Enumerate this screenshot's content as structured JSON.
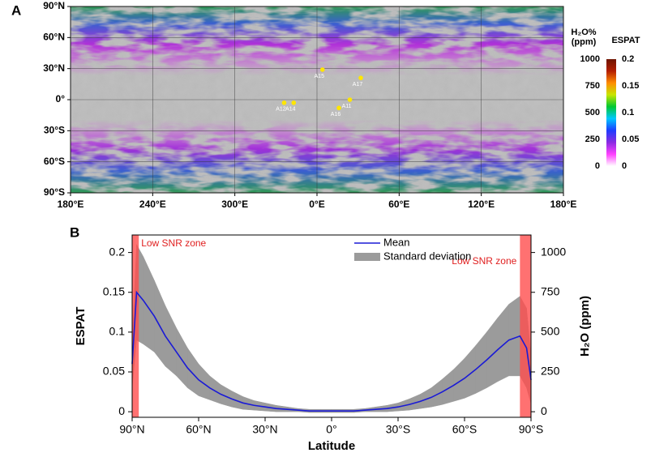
{
  "chart_data": [
    {
      "type": "map",
      "panel_label": "A",
      "xlim": [
        180,
        540
      ],
      "ylim": [
        -90,
        90
      ],
      "xticks": [
        {
          "value": 180,
          "label": "180°E"
        },
        {
          "value": 240,
          "label": "240°E"
        },
        {
          "value": 300,
          "label": "300°E"
        },
        {
          "value": 360,
          "label": "0°E"
        },
        {
          "value": 420,
          "label": "60°E"
        },
        {
          "value": 480,
          "label": "120°E"
        },
        {
          "value": 540,
          "label": "180°E"
        }
      ],
      "yticks": [
        {
          "value": 90,
          "label": "90°N"
        },
        {
          "value": 60,
          "label": "60°N"
        },
        {
          "value": 30,
          "label": "30°N"
        },
        {
          "value": 0,
          "label": "0°"
        },
        {
          "value": -30,
          "label": "30°S"
        },
        {
          "value": -60,
          "label": "60°S"
        },
        {
          "value": -90,
          "label": "90°S"
        }
      ],
      "grid": true,
      "sites": {
        "color": "#ffe600",
        "labels": [
          "A15",
          "A17",
          "A11",
          "A16",
          "A12",
          "A14"
        ],
        "x": [
          364,
          392,
          384,
          376,
          336,
          343
        ],
        "y": [
          29,
          21,
          0,
          -8,
          -3,
          -3
        ]
      },
      "colorbar": {
        "title_left": [
          "H₂O%",
          "(ppm)"
        ],
        "title_right": "ESPAT",
        "lim": [
          0,
          1000
        ],
        "ticks": [
          0,
          250,
          500,
          750,
          1000
        ],
        "lim2": [
          0,
          0.2
        ],
        "ticks2": [
          0,
          0.05,
          0.1,
          0.15,
          0.2
        ],
        "colors": [
          "#ffffff",
          "#ff40ff",
          "#8a2be2",
          "#1e3cff",
          "#00c8ff",
          "#00c832",
          "#c8e600",
          "#ff8c00",
          "#b41e00",
          "#6e1400"
        ]
      }
    },
    {
      "type": "line",
      "panel_label": "B",
      "x": [
        90,
        88,
        85,
        80,
        75,
        70,
        65,
        60,
        55,
        50,
        45,
        40,
        35,
        30,
        25,
        20,
        15,
        10,
        5,
        0,
        -5,
        -10,
        -15,
        -20,
        -25,
        -30,
        -35,
        -40,
        -45,
        -50,
        -55,
        -60,
        -65,
        -70,
        -75,
        -80,
        -85,
        -88,
        -90
      ],
      "xlim": [
        90,
        -90
      ],
      "xticks": [
        {
          "value": 90,
          "label": "90°N"
        },
        {
          "value": 60,
          "label": "60°N"
        },
        {
          "value": 30,
          "label": "30°N"
        },
        {
          "value": 0,
          "label": "0°"
        },
        {
          "value": -30,
          "label": "30°S"
        },
        {
          "value": -60,
          "label": "60°S"
        },
        {
          "value": -90,
          "label": "90°S"
        }
      ],
      "xlabel": "Latitude",
      "ylabel": "ESPAT",
      "y2label": "H₂O (ppm)",
      "ylim": [
        -0.007,
        0.222
      ],
      "yticks": [
        0,
        0.05,
        0.1,
        0.15,
        0.2
      ],
      "y2lim": [
        -35,
        1110
      ],
      "y2ticks": [
        0,
        250,
        500,
        750,
        1000
      ],
      "series": [
        {
          "name": "Mean",
          "color": "#1a1ad6",
          "values": [
            0.06,
            0.15,
            0.14,
            0.12,
            0.095,
            0.075,
            0.055,
            0.04,
            0.03,
            0.022,
            0.016,
            0.011,
            0.008,
            0.006,
            0.004,
            0.003,
            0.002,
            0.001,
            0.001,
            0.001,
            0.001,
            0.001,
            0.002,
            0.003,
            0.004,
            0.006,
            0.009,
            0.013,
            0.018,
            0.025,
            0.033,
            0.042,
            0.053,
            0.065,
            0.078,
            0.09,
            0.095,
            0.08,
            0.04
          ]
        }
      ],
      "band": {
        "name": "Standard deviation",
        "color": "#9b9b9b",
        "values": [
          0.03,
          0.06,
          0.055,
          0.045,
          0.038,
          0.03,
          0.025,
          0.02,
          0.015,
          0.012,
          0.01,
          0.008,
          0.006,
          0.005,
          0.004,
          0.003,
          0.002,
          0.002,
          0.002,
          0.002,
          0.002,
          0.002,
          0.002,
          0.003,
          0.004,
          0.005,
          0.007,
          0.009,
          0.012,
          0.016,
          0.02,
          0.025,
          0.03,
          0.035,
          0.04,
          0.045,
          0.05,
          0.05,
          0.03
        ]
      },
      "shaded_regions": [
        {
          "label": "Low SNR zone",
          "x": [
            90,
            87
          ]
        },
        {
          "label": "Low SNR zone",
          "x": [
            -85,
            -90
          ]
        }
      ],
      "shade_color": "#ff4d4d",
      "legend": "upper right"
    }
  ]
}
